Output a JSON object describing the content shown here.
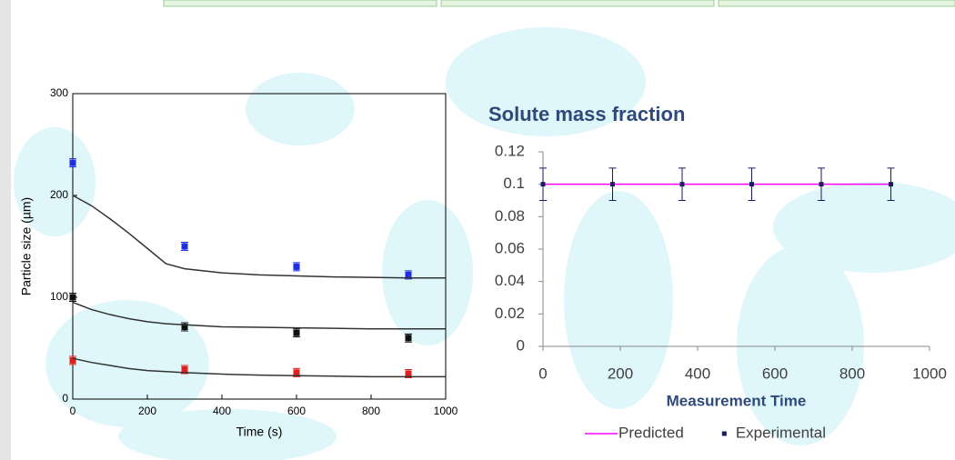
{
  "chart_data": [
    {
      "type": "scatter",
      "xlabel": "Time (s)",
      "ylabel": "Particle size (µm)",
      "xlim": [
        0,
        1000
      ],
      "xticks": [
        0,
        200,
        400,
        600,
        800,
        1000
      ],
      "ylim": [
        0,
        300
      ],
      "yticks": [
        0,
        100,
        200,
        300
      ],
      "frame": true,
      "series": [
        {
          "mode": "markers",
          "color": "#1f2ee0",
          "x": [
            0,
            300,
            600,
            900
          ],
          "values": [
            232,
            150,
            130,
            122
          ],
          "errors": [
            4,
            4,
            4,
            4
          ]
        },
        {
          "mode": "markers",
          "color": "#111111",
          "x": [
            0,
            300,
            600,
            900
          ],
          "values": [
            100,
            71,
            65,
            60
          ],
          "errors": [
            4,
            4,
            4,
            4
          ]
        },
        {
          "mode": "markers",
          "color": "#e01f1f",
          "x": [
            0,
            300,
            600,
            900
          ],
          "values": [
            38,
            29,
            26,
            25
          ],
          "errors": [
            4,
            4,
            4,
            4
          ]
        },
        {
          "mode": "line",
          "color": "#333333",
          "x": [
            0,
            50,
            100,
            150,
            200,
            250,
            300,
            400,
            500,
            600,
            700,
            800,
            900,
            1000
          ],
          "values": [
            200,
            190,
            177,
            163,
            148,
            133,
            128,
            124,
            122,
            121,
            120,
            119.5,
            119,
            119
          ]
        },
        {
          "mode": "line",
          "color": "#333333",
          "x": [
            0,
            50,
            100,
            150,
            200,
            250,
            300,
            400,
            500,
            600,
            700,
            800,
            900,
            1000
          ],
          "values": [
            95,
            88,
            83,
            79,
            76,
            74,
            73,
            71,
            70.5,
            70,
            69.5,
            69,
            69,
            69
          ]
        },
        {
          "mode": "line",
          "color": "#333333",
          "x": [
            0,
            50,
            100,
            150,
            200,
            250,
            300,
            400,
            500,
            600,
            700,
            800,
            900,
            1000
          ],
          "values": [
            40,
            36,
            33,
            30,
            28,
            27,
            26,
            24.5,
            23.5,
            23,
            22.5,
            22,
            22,
            22
          ]
        }
      ]
    },
    {
      "type": "line",
      "title": "Solute mass fraction",
      "xlabel": "Measurement Time",
      "xlim": [
        0,
        1000
      ],
      "xticks": [
        0,
        200,
        400,
        600,
        800,
        1000
      ],
      "ylim": [
        0,
        0.12
      ],
      "yticks": [
        0,
        0.02,
        0.04,
        0.06,
        0.08,
        0.1,
        0.12
      ],
      "legend": "bottom",
      "series": [
        {
          "name": "Predicted",
          "mode": "line",
          "color": "#ff00ff",
          "x": [
            0,
            180,
            360,
            540,
            720,
            900
          ],
          "values": [
            0.1,
            0.1,
            0.1,
            0.1,
            0.1,
            0.1
          ]
        },
        {
          "name": "Experimental",
          "mode": "markers",
          "color": "#1a1a5e",
          "x": [
            0,
            180,
            360,
            540,
            720,
            900
          ],
          "values": [
            0.1,
            0.1,
            0.1,
            0.1,
            0.1,
            0.1
          ],
          "errors": [
            0.01,
            0.01,
            0.01,
            0.01,
            0.01,
            0.01
          ]
        }
      ]
    }
  ]
}
